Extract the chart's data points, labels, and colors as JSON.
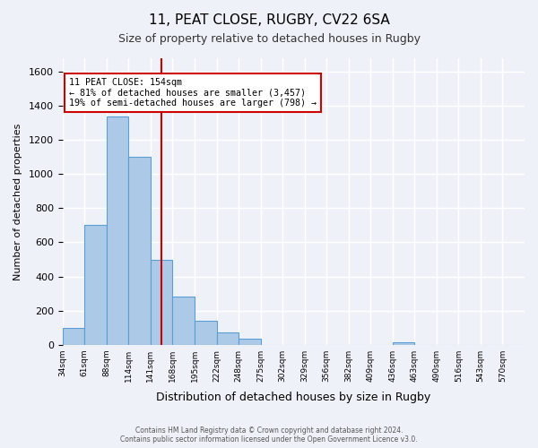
{
  "title1": "11, PEAT CLOSE, RUGBY, CV22 6SA",
  "title2": "Size of property relative to detached houses in Rugby",
  "xlabel": "Distribution of detached houses by size in Rugby",
  "ylabel": "Number of detached properties",
  "bin_labels": [
    "34sqm",
    "61sqm",
    "88sqm",
    "114sqm",
    "141sqm",
    "168sqm",
    "195sqm",
    "222sqm",
    "248sqm",
    "275sqm",
    "302sqm",
    "329sqm",
    "356sqm",
    "382sqm",
    "409sqm",
    "436sqm",
    "463sqm",
    "490sqm",
    "516sqm",
    "543sqm",
    "570sqm"
  ],
  "bin_values": [
    100,
    700,
    1340,
    1100,
    500,
    280,
    140,
    70,
    35,
    0,
    0,
    0,
    0,
    0,
    0,
    15,
    0,
    0,
    0,
    0,
    0
  ],
  "bar_color": "#adc9e8",
  "bar_edge_color": "#5a9fd4",
  "annotation_title": "11 PEAT CLOSE: 154sqm",
  "annotation_line1": "← 81% of detached houses are smaller (3,457)",
  "annotation_line2": "19% of semi-detached houses are larger (798) →",
  "vline_color": "#cc0000",
  "annotation_box_color": "#ffffff",
  "annotation_box_edge": "#cc0000",
  "ylim": [
    0,
    1680
  ],
  "yticks": [
    0,
    200,
    400,
    600,
    800,
    1000,
    1200,
    1400,
    1600
  ],
  "footer1": "Contains HM Land Registry data © Crown copyright and database right 2024.",
  "footer2": "Contains public sector information licensed under the Open Government Licence v3.0.",
  "bg_color": "#eef2f8",
  "grid_color": "#ffffff"
}
